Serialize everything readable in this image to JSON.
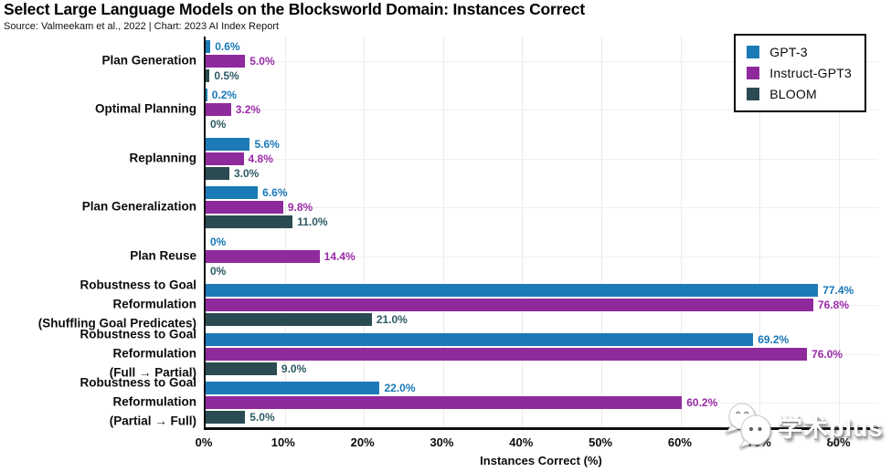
{
  "header": {
    "title": "Select Large Language Models on the Blocksworld Domain: Instances Correct",
    "source": "Source: Valmeekam et al., 2022 | Chart: 2023 AI Index Report"
  },
  "chart_data": {
    "type": "bar",
    "orientation": "horizontal",
    "title": "Select Large Language Models on the Blocksworld Domain: Instances Correct",
    "xlabel": "Instances Correct (%)",
    "ylabel": "",
    "categories": [
      "Plan Generation",
      "Optimal Planning",
      "Replanning",
      "Plan Generalization",
      "Plan Reuse",
      "Robustness to Goal Reformulation\n(Shuffling Goal Predicates)",
      "Robustness to Goal Reformulation\n(Full → Partial)",
      "Robustness to Goal Reformulation\n(Partial → Full)"
    ],
    "series": [
      {
        "name": "GPT-3",
        "color": "#1c7ab6",
        "label_color": "#1878b8",
        "values": [
          0.6,
          0.2,
          5.6,
          6.6,
          0,
          77.4,
          69.2,
          22.0
        ],
        "value_labels": [
          "0.6%",
          "0.2%",
          "5.6%",
          "6.6%",
          "0%",
          "77.4%",
          "69.2%",
          "22.0%"
        ]
      },
      {
        "name": "Instruct-GPT3",
        "color": "#8f2a9d",
        "label_color": "#9a2ba8",
        "values": [
          5.0,
          3.2,
          4.8,
          9.8,
          14.4,
          76.8,
          76.0,
          60.2
        ],
        "value_labels": [
          "5.0%",
          "3.2%",
          "4.8%",
          "9.8%",
          "14.4%",
          "76.8%",
          "76.0%",
          "60.2%"
        ]
      },
      {
        "name": "BLOOM",
        "color": "#2b4b52",
        "label_color": "#2d5a64",
        "values": [
          0.5,
          0,
          3.0,
          11.0,
          0,
          21.0,
          9.0,
          5.0
        ],
        "value_labels": [
          "0.5%",
          "0%",
          "3.0%",
          "11.0%",
          "0%",
          "21.0%",
          "9.0%",
          "5.0%"
        ]
      }
    ],
    "xticks": [
      "0%",
      "10%",
      "20%",
      "30%",
      "40%",
      "50%",
      "60%",
      "70%",
      "80%"
    ],
    "xtick_values": [
      0,
      10,
      20,
      30,
      40,
      50,
      60,
      70,
      80
    ],
    "xlim": [
      0,
      85
    ],
    "grid": true,
    "legend_position": "top-right"
  },
  "watermark": {
    "text": "学术plus"
  }
}
